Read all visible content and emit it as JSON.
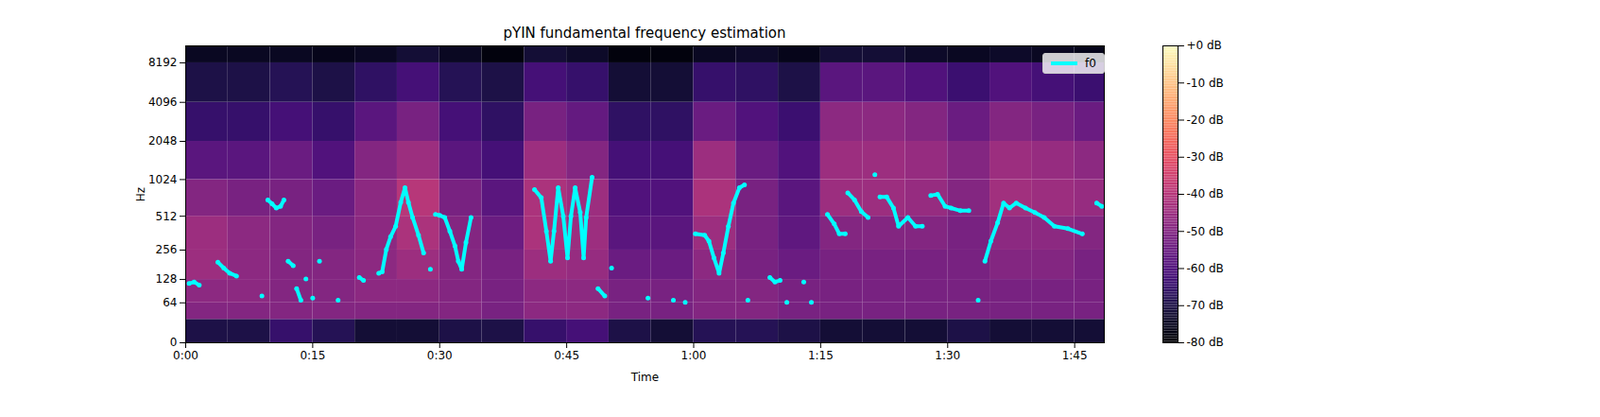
{
  "chart_data": {
    "type": "spectrogram",
    "title": "pYIN fundamental frequency estimation",
    "x_label": "Time",
    "y_label": "Hz",
    "log": "y",
    "grid": false,
    "legend": "upper right",
    "color": "magma",
    "xlim": [
      0,
      108.5
    ],
    "xticks": [
      {
        "value": 0,
        "label": "0:00"
      },
      {
        "value": 15,
        "label": "0:15"
      },
      {
        "value": 30,
        "label": "0:30"
      },
      {
        "value": 45,
        "label": "0:45"
      },
      {
        "value": 60,
        "label": "1:00"
      },
      {
        "value": 75,
        "label": "1:15"
      },
      {
        "value": 90,
        "label": "1:30"
      },
      {
        "value": 105,
        "label": "1:45"
      }
    ],
    "ylim": [
      0,
      11025
    ],
    "yticks": [
      0,
      64,
      128,
      256,
      512,
      1024,
      2048,
      4096,
      8192
    ],
    "spectrogram": {
      "time_edges": [
        0,
        5,
        10,
        15,
        20,
        25,
        30,
        35,
        40,
        45,
        50,
        55,
        60,
        65,
        70,
        75,
        80,
        85,
        90,
        95,
        100,
        105,
        108.5
      ],
      "freq_edges": [
        0,
        32,
        64,
        128,
        256,
        512,
        1024,
        2048,
        4096,
        8192,
        11025
      ],
      "db": [
        [
          -70,
          -50,
          -48,
          -45,
          -45,
          -50,
          -58,
          -65,
          -70,
          -75
        ],
        [
          -70,
          -50,
          -48,
          -48,
          -48,
          -52,
          -58,
          -65,
          -70,
          -75
        ],
        [
          -65,
          -50,
          -50,
          -50,
          -50,
          -52,
          -55,
          -62,
          -68,
          -75
        ],
        [
          -68,
          -50,
          -50,
          -50,
          -52,
          -55,
          -60,
          -65,
          -70,
          -76
        ],
        [
          -72,
          -50,
          -48,
          -48,
          -48,
          -48,
          -50,
          -58,
          -66,
          -75
        ],
        [
          -72,
          -50,
          -48,
          -45,
          -42,
          -40,
          -45,
          -52,
          -62,
          -72
        ],
        [
          -70,
          -50,
          -50,
          -50,
          -50,
          -52,
          -58,
          -62,
          -68,
          -75
        ],
        [
          -70,
          -52,
          -52,
          -52,
          -55,
          -58,
          -62,
          -66,
          -70,
          -78
        ],
        [
          -65,
          -48,
          -48,
          -45,
          -42,
          -42,
          -45,
          -52,
          -62,
          -72
        ],
        [
          -62,
          -48,
          -48,
          -46,
          -45,
          -45,
          -50,
          -56,
          -65,
          -74
        ],
        [
          -70,
          -52,
          -52,
          -55,
          -58,
          -60,
          -62,
          -66,
          -72,
          -78
        ],
        [
          -72,
          -52,
          -52,
          -55,
          -58,
          -60,
          -62,
          -66,
          -72,
          -78
        ],
        [
          -68,
          -50,
          -50,
          -48,
          -45,
          -42,
          -45,
          -55,
          -65,
          -75
        ],
        [
          -68,
          -50,
          -50,
          -52,
          -52,
          -52,
          -55,
          -60,
          -66,
          -74
        ],
        [
          -70,
          -52,
          -52,
          -55,
          -57,
          -58,
          -60,
          -64,
          -70,
          -76
        ],
        [
          -72,
          -52,
          -52,
          -52,
          -50,
          -45,
          -45,
          -48,
          -58,
          -72
        ],
        [
          -72,
          -52,
          -52,
          -52,
          -50,
          -45,
          -45,
          -48,
          -58,
          -72
        ],
        [
          -72,
          -52,
          -52,
          -52,
          -50,
          -46,
          -46,
          -50,
          -60,
          -74
        ],
        [
          -70,
          -52,
          -52,
          -52,
          -52,
          -50,
          -50,
          -55,
          -64,
          -75
        ],
        [
          -72,
          -52,
          -52,
          -50,
          -48,
          -44,
          -45,
          -50,
          -60,
          -74
        ],
        [
          -72,
          -52,
          -52,
          -50,
          -48,
          -45,
          -46,
          -52,
          -62,
          -75
        ],
        [
          -72,
          -52,
          -52,
          -52,
          -50,
          -46,
          -48,
          -55,
          -64,
          -76
        ]
      ]
    },
    "colorbar": {
      "range": [
        -80,
        0
      ],
      "ticks": [
        {
          "value": 0,
          "label": "+0 dB"
        },
        {
          "value": -10,
          "label": "-10 dB"
        },
        {
          "value": -20,
          "label": "-20 dB"
        },
        {
          "value": -30,
          "label": "-30 dB"
        },
        {
          "value": -40,
          "label": "-40 dB"
        },
        {
          "value": -50,
          "label": "-50 dB"
        },
        {
          "value": -60,
          "label": "-60 dB"
        },
        {
          "value": -70,
          "label": "-70 dB"
        },
        {
          "value": -80,
          "label": "-80 dB"
        }
      ]
    },
    "x": [
      0.4,
      1.0,
      1.6,
      2.5,
      3.8,
      4.5,
      5.2,
      6.0,
      7.0,
      9.0,
      9.3,
      9.7,
      10.2,
      10.7,
      11.2,
      11.6,
      11.9,
      12.1,
      12.7,
      12.9,
      13.1,
      13.6,
      13.8,
      14.2,
      14.6,
      15.0,
      15.4,
      15.8,
      16.2,
      18.0,
      18.4,
      20.5,
      21.0,
      21.4,
      22.8,
      23.2,
      23.7,
      24.2,
      24.8,
      25.4,
      25.9,
      26.3,
      26.8,
      27.5,
      28.1,
      28.5,
      28.9,
      29.2,
      29.5,
      30.0,
      30.6,
      31.2,
      31.8,
      32.2,
      32.6,
      33.1,
      33.7,
      34.2,
      41.2,
      42.0,
      42.6,
      43.1,
      43.5,
      44.0,
      44.6,
      45.1,
      45.5,
      46.0,
      46.6,
      47.0,
      47.3,
      48.0,
      48.3,
      48.7,
      49.5,
      49.9,
      50.3,
      50.6,
      54.6,
      55.0,
      57.6,
      58.0,
      59.0,
      59.4,
      60.2,
      61.3,
      61.8,
      62.4,
      63.0,
      63.5,
      64.1,
      64.7,
      65.4,
      66.0,
      66.2,
      66.4,
      66.8,
      69.0,
      69.6,
      70.2,
      70.6,
      71.0,
      71.4,
      73.0,
      73.4,
      73.9,
      74.3,
      75.8,
      76.6,
      77.2,
      77.9,
      78.0,
      78.2,
      79.0,
      79.8,
      80.6,
      81.0,
      81.4,
      81.7,
      82.0,
      82.8,
      83.6,
      84.2,
      85.3,
      86.2,
      87.0,
      87.5,
      88.0,
      88.8,
      89.7,
      90.4,
      91.5,
      92.5,
      93.0,
      93.6,
      94.0,
      94.4,
      95.1,
      95.9,
      96.6,
      97.3,
      98.1,
      99.2,
      100.3,
      101.4,
      102.6,
      104.2,
      105.9,
      107.0,
      107.6,
      108.2
    ],
    "series": [
      {
        "name": "f0",
        "color": "#00ffff",
        "type": "line",
        "line_style": "solid",
        "marker": "o",
        "values": [
          115,
          120,
          110,
          null,
          195,
          170,
          150,
          140,
          null,
          80,
          null,
          700,
          650,
          600,
          620,
          700,
          null,
          200,
          180,
          null,
          100,
          70,
          null,
          130,
          null,
          75,
          null,
          200,
          null,
          70,
          null,
          135,
          125,
          null,
          150,
          155,
          260,
          340,
          420,
          670,
          880,
          670,
          500,
          350,
          240,
          null,
          165,
          null,
          530,
          520,
          500,
          380,
          280,
          200,
          165,
          300,
          500,
          null,
          850,
          730,
          380,
          200,
          380,
          880,
          510,
          215,
          510,
          880,
          550,
          215,
          500,
          1070,
          null,
          100,
          80,
          null,
          170,
          null,
          75,
          null,
          70,
          null,
          65,
          null,
          360,
          350,
          310,
          215,
          150,
          240,
          420,
          660,
          880,
          930,
          null,
          70,
          null,
          135,
          120,
          125,
          null,
          65,
          null,
          120,
          null,
          65,
          null,
          530,
          440,
          360,
          360,
          null,
          800,
          700,
          560,
          500,
          null,
          1120,
          null,
          740,
          740,
          600,
          420,
          500,
          420,
          420,
          null,
          760,
          780,
          620,
          600,
          570,
          570,
          null,
          70,
          null,
          200,
          310,
          450,
          660,
          600,
          660,
          600,
          550,
          500,
          420,
          400,
          360,
          null,
          660,
          620
        ]
      }
    ]
  }
}
